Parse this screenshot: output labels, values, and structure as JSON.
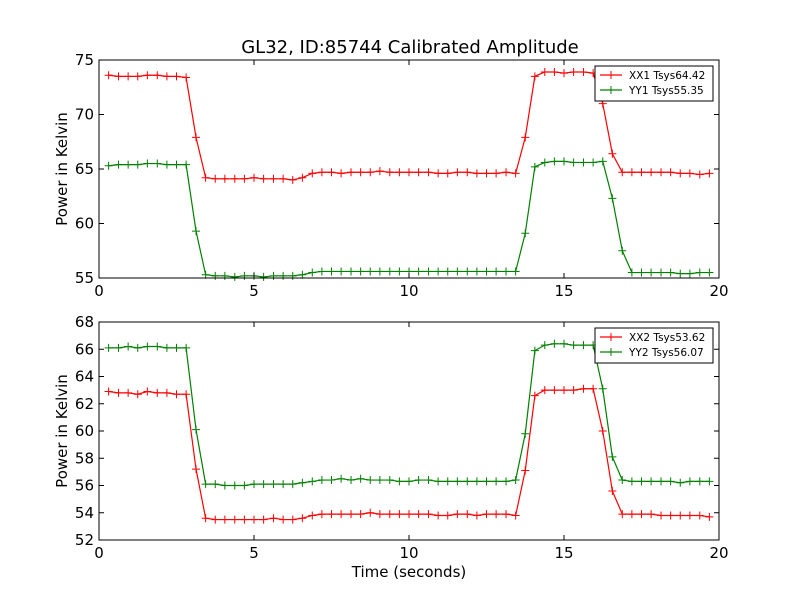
{
  "figure_title": "GL32, ID:85744 Calibrated Amplitude",
  "chart_data": [
    {
      "type": "line",
      "title": "GL32, ID:85744 Calibrated Amplitude",
      "xlabel": "",
      "ylabel": "Power in Kelvin",
      "xlim": [
        0,
        20
      ],
      "ylim": [
        55,
        75
      ],
      "xticks": [
        "0",
        "5",
        "10",
        "15",
        "20"
      ],
      "yticks": [
        "55",
        "60",
        "65",
        "70",
        "75"
      ],
      "grid": false,
      "legend_position": "top-right",
      "x": [
        0.31,
        0.63,
        0.94,
        1.25,
        1.56,
        1.88,
        2.19,
        2.5,
        2.81,
        3.13,
        3.44,
        3.75,
        4.06,
        4.38,
        4.69,
        5.0,
        5.31,
        5.63,
        5.94,
        6.25,
        6.56,
        6.88,
        7.19,
        7.5,
        7.81,
        8.13,
        8.44,
        8.75,
        9.06,
        9.38,
        9.69,
        10.0,
        10.31,
        10.63,
        10.94,
        11.25,
        11.56,
        11.88,
        12.19,
        12.5,
        12.81,
        13.13,
        13.44,
        13.75,
        14.06,
        14.38,
        14.69,
        15.0,
        15.31,
        15.63,
        15.94,
        16.25,
        16.56,
        16.88,
        17.19,
        17.5,
        17.81,
        18.13,
        18.44,
        18.75,
        19.06,
        19.38,
        19.69
      ],
      "series": [
        {
          "name": "XX1 Tsys64.42",
          "color": "#ff0000",
          "values": [
            73.6,
            73.5,
            73.5,
            73.5,
            73.6,
            73.6,
            73.5,
            73.5,
            73.4,
            67.9,
            64.2,
            64.1,
            64.1,
            64.1,
            64.1,
            64.2,
            64.1,
            64.1,
            64.1,
            64.0,
            64.2,
            64.6,
            64.7,
            64.7,
            64.6,
            64.7,
            64.7,
            64.7,
            64.8,
            64.7,
            64.7,
            64.7,
            64.7,
            64.7,
            64.6,
            64.6,
            64.7,
            64.7,
            64.6,
            64.6,
            64.6,
            64.7,
            64.6,
            67.9,
            73.5,
            73.9,
            73.9,
            73.8,
            73.9,
            73.9,
            73.8,
            71.0,
            66.4,
            64.7,
            64.7,
            64.7,
            64.7,
            64.7,
            64.7,
            64.6,
            64.6,
            64.5,
            64.6
          ]
        },
        {
          "name": "YY1 Tsys55.35",
          "color": "#008000",
          "values": [
            65.3,
            65.4,
            65.4,
            65.4,
            65.5,
            65.5,
            65.4,
            65.4,
            65.4,
            59.3,
            55.3,
            55.2,
            55.2,
            55.1,
            55.2,
            55.2,
            55.1,
            55.2,
            55.2,
            55.2,
            55.3,
            55.5,
            55.6,
            55.6,
            55.6,
            55.6,
            55.6,
            55.6,
            55.6,
            55.6,
            55.6,
            55.6,
            55.6,
            55.6,
            55.6,
            55.6,
            55.6,
            55.6,
            55.6,
            55.6,
            55.6,
            55.6,
            55.6,
            59.1,
            65.2,
            65.6,
            65.7,
            65.7,
            65.6,
            65.6,
            65.6,
            65.7,
            62.3,
            57.5,
            55.5,
            55.5,
            55.5,
            55.5,
            55.5,
            55.4,
            55.4,
            55.5,
            55.5
          ]
        }
      ]
    },
    {
      "type": "line",
      "title": "",
      "xlabel": "Time (seconds)",
      "ylabel": "Power in Kelvin",
      "xlim": [
        0,
        20
      ],
      "ylim": [
        52,
        68
      ],
      "xticks": [
        "0",
        "5",
        "10",
        "15",
        "20"
      ],
      "yticks": [
        "52",
        "54",
        "56",
        "58",
        "60",
        "62",
        "64",
        "66",
        "68"
      ],
      "grid": false,
      "legend_position": "top-right",
      "x": [
        0.31,
        0.63,
        0.94,
        1.25,
        1.56,
        1.88,
        2.19,
        2.5,
        2.81,
        3.13,
        3.44,
        3.75,
        4.06,
        4.38,
        4.69,
        5.0,
        5.31,
        5.63,
        5.94,
        6.25,
        6.56,
        6.88,
        7.19,
        7.5,
        7.81,
        8.13,
        8.44,
        8.75,
        9.06,
        9.38,
        9.69,
        10.0,
        10.31,
        10.63,
        10.94,
        11.25,
        11.56,
        11.88,
        12.19,
        12.5,
        12.81,
        13.13,
        13.44,
        13.75,
        14.06,
        14.38,
        14.69,
        15.0,
        15.31,
        15.63,
        15.94,
        16.25,
        16.56,
        16.88,
        17.19,
        17.5,
        17.81,
        18.13,
        18.44,
        18.75,
        19.06,
        19.38,
        19.69
      ],
      "series": [
        {
          "name": "XX2 Tsys53.62",
          "color": "#ff0000",
          "values": [
            62.9,
            62.8,
            62.8,
            62.7,
            62.9,
            62.8,
            62.8,
            62.7,
            62.7,
            57.2,
            53.6,
            53.5,
            53.5,
            53.5,
            53.5,
            53.5,
            53.5,
            53.6,
            53.5,
            53.5,
            53.6,
            53.8,
            53.9,
            53.9,
            53.9,
            53.9,
            53.9,
            54.0,
            53.9,
            53.9,
            53.9,
            53.9,
            53.9,
            53.9,
            53.8,
            53.8,
            53.9,
            53.9,
            53.8,
            53.9,
            53.9,
            53.9,
            53.8,
            57.1,
            62.6,
            63.0,
            63.0,
            63.0,
            63.0,
            63.1,
            63.1,
            60.0,
            55.6,
            53.9,
            53.9,
            53.9,
            53.9,
            53.8,
            53.8,
            53.8,
            53.8,
            53.8,
            53.7
          ]
        },
        {
          "name": "YY2 Tsys56.07",
          "color": "#008000",
          "values": [
            66.1,
            66.1,
            66.2,
            66.1,
            66.2,
            66.2,
            66.1,
            66.1,
            66.1,
            60.1,
            56.1,
            56.1,
            56.0,
            56.0,
            56.0,
            56.1,
            56.1,
            56.1,
            56.1,
            56.1,
            56.2,
            56.3,
            56.4,
            56.4,
            56.5,
            56.4,
            56.5,
            56.4,
            56.4,
            56.4,
            56.3,
            56.3,
            56.4,
            56.4,
            56.3,
            56.3,
            56.3,
            56.3,
            56.3,
            56.3,
            56.3,
            56.3,
            56.4,
            59.8,
            65.9,
            66.3,
            66.4,
            66.4,
            66.3,
            66.3,
            66.3,
            63.1,
            58.1,
            56.4,
            56.3,
            56.3,
            56.3,
            56.3,
            56.3,
            56.2,
            56.3,
            56.3,
            56.3
          ]
        }
      ]
    }
  ]
}
